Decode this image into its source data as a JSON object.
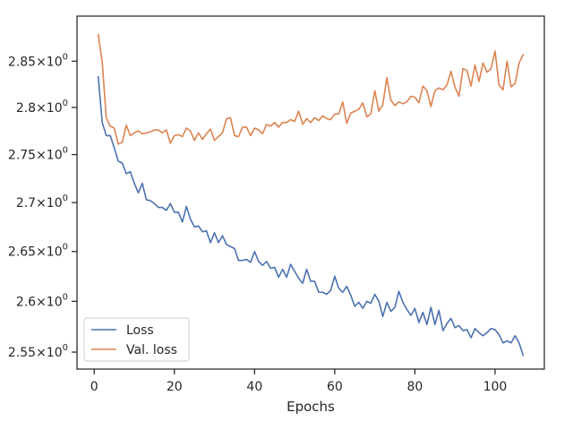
{
  "chart_data": {
    "type": "line",
    "title": "",
    "xlabel": "Epochs",
    "ylabel": "",
    "xlim": [
      -4.3,
      112.3
    ],
    "ylim": [
      2.5335,
      2.8995
    ],
    "y_scale": "log",
    "grid": false,
    "legend_position": "lower-left",
    "x_ticks": [
      0,
      20,
      40,
      60,
      80,
      100
    ],
    "x_tick_labels": [
      "0",
      "20",
      "40",
      "60",
      "80",
      "100"
    ],
    "y_ticks": [
      2.55,
      2.6,
      2.65,
      2.7,
      2.75,
      2.8,
      2.85
    ],
    "y_tick_labels": [
      {
        "mantissa": "2.55",
        "base": "10",
        "exp": "0"
      },
      {
        "mantissa": "2.6",
        "base": "10",
        "exp": "0"
      },
      {
        "mantissa": "2.65",
        "base": "10",
        "exp": "0"
      },
      {
        "mantissa": "2.7",
        "base": "10",
        "exp": "0"
      },
      {
        "mantissa": "2.75",
        "base": "10",
        "exp": "0"
      },
      {
        "mantissa": "2.8",
        "base": "10",
        "exp": "0"
      },
      {
        "mantissa": "2.85",
        "base": "10",
        "exp": "0"
      }
    ],
    "x": [
      1,
      2,
      3,
      4,
      5,
      6,
      7,
      8,
      9,
      10,
      11,
      12,
      13,
      14,
      15,
      16,
      17,
      18,
      19,
      20,
      21,
      22,
      23,
      24,
      25,
      26,
      27,
      28,
      29,
      30,
      31,
      32,
      33,
      34,
      35,
      36,
      37,
      38,
      39,
      40,
      41,
      42,
      43,
      44,
      45,
      46,
      47,
      48,
      49,
      50,
      51,
      52,
      53,
      54,
      55,
      56,
      57,
      58,
      59,
      60,
      61,
      62,
      63,
      64,
      65,
      66,
      67,
      68,
      69,
      70,
      71,
      72,
      73,
      74,
      75,
      76,
      77,
      78,
      79,
      80,
      81,
      82,
      83,
      84,
      85,
      86,
      87,
      88,
      89,
      90,
      91,
      92,
      93,
      94,
      95,
      96,
      97,
      98,
      99,
      100,
      101,
      102,
      103,
      104,
      105,
      106,
      107
    ],
    "series": [
      {
        "name": "Loss",
        "color": "#4c72b0",
        "values": [
          2.833,
          2.784,
          2.77,
          2.77,
          2.757,
          2.743,
          2.741,
          2.73,
          2.732,
          2.72,
          2.71,
          2.72,
          2.703,
          2.702,
          2.699,
          2.695,
          2.695,
          2.692,
          2.699,
          2.69,
          2.69,
          2.68,
          2.696,
          2.683,
          2.675,
          2.676,
          2.67,
          2.671,
          2.659,
          2.669,
          2.659,
          2.666,
          2.657,
          2.655,
          2.653,
          2.641,
          2.641,
          2.642,
          2.639,
          2.65,
          2.64,
          2.636,
          2.64,
          2.633,
          2.634,
          2.624,
          2.632,
          2.624,
          2.637,
          2.63,
          2.623,
          2.618,
          2.632,
          2.62,
          2.62,
          2.609,
          2.609,
          2.607,
          2.611,
          2.625,
          2.613,
          2.609,
          2.615,
          2.606,
          2.595,
          2.599,
          2.593,
          2.6,
          2.598,
          2.607,
          2.6,
          2.585,
          2.599,
          2.59,
          2.594,
          2.61,
          2.599,
          2.592,
          2.586,
          2.593,
          2.579,
          2.589,
          2.577,
          2.594,
          2.577,
          2.591,
          2.571,
          2.578,
          2.583,
          2.574,
          2.576,
          2.571,
          2.572,
          2.564,
          2.573,
          2.569,
          2.566,
          2.569,
          2.573,
          2.572,
          2.567,
          2.559,
          2.561,
          2.559,
          2.566,
          2.559,
          2.547
        ]
      },
      {
        "name": "Val. loss",
        "color": "#dd8452",
        "values": [
          2.879,
          2.849,
          2.789,
          2.78,
          2.778,
          2.761,
          2.763,
          2.781,
          2.77,
          2.773,
          2.775,
          2.772,
          2.773,
          2.774,
          2.776,
          2.776,
          2.773,
          2.776,
          2.762,
          2.77,
          2.771,
          2.769,
          2.778,
          2.775,
          2.765,
          2.773,
          2.766,
          2.772,
          2.777,
          2.765,
          2.769,
          2.773,
          2.788,
          2.789,
          2.77,
          2.769,
          2.779,
          2.779,
          2.77,
          2.778,
          2.776,
          2.772,
          2.782,
          2.78,
          2.784,
          2.779,
          2.784,
          2.784,
          2.787,
          2.785,
          2.796,
          2.782,
          2.788,
          2.784,
          2.789,
          2.786,
          2.791,
          2.788,
          2.787,
          2.793,
          2.793,
          2.806,
          2.783,
          2.794,
          2.796,
          2.798,
          2.805,
          2.79,
          2.793,
          2.818,
          2.796,
          2.803,
          2.832,
          2.808,
          2.802,
          2.806,
          2.804,
          2.806,
          2.812,
          2.811,
          2.805,
          2.823,
          2.818,
          2.801,
          2.818,
          2.821,
          2.819,
          2.824,
          2.839,
          2.822,
          2.812,
          2.842,
          2.84,
          2.823,
          2.846,
          2.828,
          2.848,
          2.838,
          2.842,
          2.861,
          2.824,
          2.819,
          2.85,
          2.822,
          2.826,
          2.848,
          2.857
        ]
      }
    ]
  }
}
